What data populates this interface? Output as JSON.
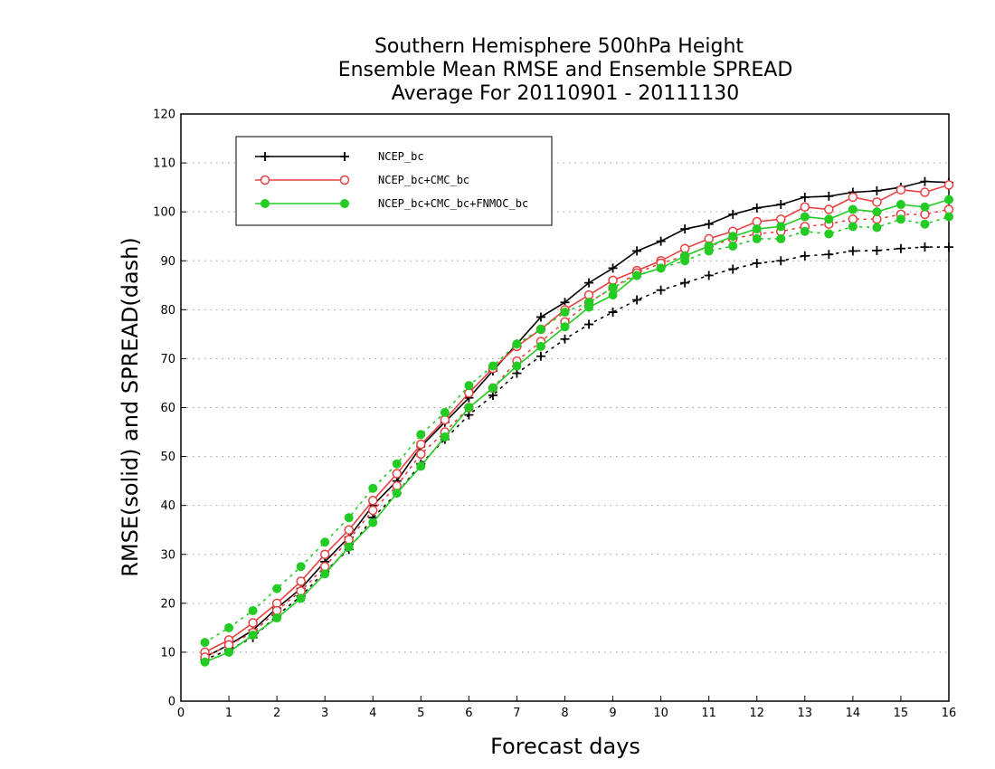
{
  "chart_data": {
    "type": "line",
    "title_lines": [
      "Southern Hemisphere 500hPa Height",
      "Ensemble Mean RMSE and Ensemble SPREAD",
      "Average For 20110901 - 20111130"
    ],
    "xlabel": "Forecast days",
    "ylabel": "RMSE(solid) and SPREAD(dash)",
    "xlim": [
      0,
      16
    ],
    "ylim": [
      0,
      120
    ],
    "xticks": [
      0,
      1,
      2,
      3,
      4,
      5,
      6,
      7,
      8,
      9,
      10,
      11,
      12,
      13,
      14,
      15,
      16
    ],
    "yticks": [
      0,
      10,
      20,
      30,
      40,
      50,
      60,
      70,
      80,
      90,
      100,
      110,
      120
    ],
    "grid": true,
    "legend_position": "top-left",
    "x": [
      0.5,
      1,
      1.5,
      2,
      2.5,
      3,
      3.5,
      4,
      4.5,
      5,
      5.5,
      6,
      6.5,
      7,
      7.5,
      8,
      8.5,
      9,
      9.5,
      10,
      10.5,
      11,
      11.5,
      12,
      12.5,
      13,
      13.5,
      14,
      14.5,
      15,
      15.5,
      16
    ],
    "series": [
      {
        "name": "NCEP_bc",
        "color": "#000000",
        "marker": "plus",
        "rmse": [
          9,
          11.5,
          14.5,
          19,
          23,
          28.5,
          33.5,
          40,
          45,
          52,
          57,
          62,
          67.5,
          73,
          78.5,
          81.5,
          85.5,
          88.5,
          92,
          94,
          96.5,
          97.5,
          99.5,
          100.8,
          101.5,
          103,
          103.2,
          104,
          104.3,
          105,
          106.2,
          106
        ],
        "spread": [
          8.5,
          10.5,
          13,
          17.5,
          21.5,
          26.5,
          31,
          37.5,
          42.5,
          48.5,
          53.5,
          58.5,
          62.5,
          67,
          70.5,
          74,
          77,
          79.5,
          82,
          84,
          85.5,
          87,
          88.3,
          89.5,
          90,
          91,
          91.3,
          92,
          92.1,
          92.5,
          92.8,
          92.8
        ]
      },
      {
        "name": "NCEP_bc+CMC_bc",
        "color": "#e84040",
        "marker": "open-circle",
        "rmse": [
          10,
          12.5,
          16,
          20,
          24.5,
          30,
          35,
          41,
          46.5,
          52.5,
          57.5,
          63,
          68,
          72.5,
          76,
          80,
          83,
          86,
          88,
          90,
          92.5,
          94.5,
          96,
          98,
          98.5,
          101,
          100.5,
          103,
          102,
          104.5,
          104,
          105.5
        ],
        "spread": [
          9,
          11.5,
          14,
          18.5,
          22.5,
          27.5,
          33,
          39,
          44,
          50.5,
          55,
          60,
          64,
          69.5,
          73.5,
          77.5,
          81.5,
          84.5,
          87.5,
          89.5,
          91,
          93,
          94.5,
          95.5,
          96,
          97,
          97.5,
          98.5,
          98.5,
          99.5,
          99.5,
          100.5
        ]
      },
      {
        "name": "NCEP_bc+CMC_bc+FNMOC_bc",
        "color": "#22cc22",
        "marker": "filled-circle",
        "rmse": [
          8,
          10,
          13.5,
          17,
          21,
          26,
          31.5,
          36.5,
          42.5,
          48,
          54,
          60,
          64,
          68.5,
          72.5,
          76.5,
          80.5,
          83,
          87,
          88.5,
          91,
          93,
          95,
          96.5,
          97,
          99,
          98.5,
          100.5,
          100,
          101.5,
          101,
          102.5
        ],
        "spread": [
          12,
          15,
          18.5,
          23,
          27.5,
          32.5,
          37.5,
          43.5,
          48.5,
          54.5,
          59,
          64.5,
          68.5,
          73,
          76,
          79.5,
          81.5,
          84.5,
          87,
          88.5,
          90,
          92,
          93,
          94.5,
          94.5,
          96,
          95.5,
          97,
          96.8,
          98.5,
          97.5,
          99
        ]
      }
    ]
  }
}
